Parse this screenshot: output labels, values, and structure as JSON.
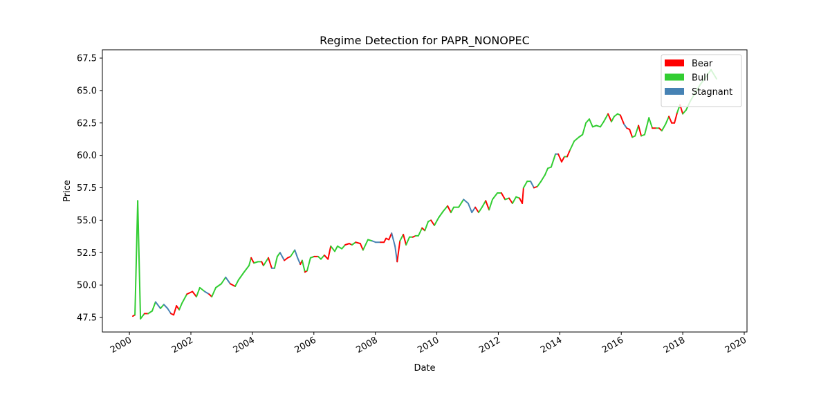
{
  "chart_data": {
    "type": "regime_line",
    "title": "Regime Detection for PAPR_NONOPEC",
    "x_label": "Date",
    "y_label": "Price",
    "series": [
      {
        "name": "Bear",
        "color": "#ff0000"
      },
      {
        "name": "Bull",
        "color": "#32cd32"
      },
      {
        "name": "Stagnant",
        "color": "#4682b4"
      }
    ],
    "legend": "upper right",
    "xlim": [
      1999.12,
      2020.09
    ],
    "xticks": [
      2000,
      2002,
      2004,
      2006,
      2008,
      2010,
      2012,
      2014,
      2016,
      2018,
      2020
    ],
    "ylim": [
      46.38,
      68.14
    ],
    "yticks": [
      47.5,
      {
        "value": 50,
        "label": "50.0"
      },
      52.5,
      {
        "value": 55,
        "label": "55.0"
      },
      57.5,
      {
        "value": 60,
        "label": "60.0"
      },
      62.5,
      {
        "value": 65,
        "label": "65.0"
      },
      67.5
    ],
    "x": [
      2000.11,
      2000.18,
      2000.27,
      2000.36,
      2000.49,
      2000.61,
      2000.74,
      2000.85,
      2001.01,
      2001.12,
      2001.24,
      2001.35,
      2001.44,
      2001.53,
      2001.62,
      2001.71,
      2001.87,
      2002.05,
      2002.18,
      2002.29,
      2002.45,
      2002.59,
      2002.68,
      2002.81,
      2002.99,
      2003.13,
      2003.28,
      2003.44,
      2003.55,
      2003.73,
      2003.89,
      2003.96,
      2004.05,
      2004.18,
      2004.3,
      2004.36,
      2004.52,
      2004.63,
      2004.72,
      2004.81,
      2004.9,
      2005.04,
      2005.15,
      2005.24,
      2005.38,
      2005.47,
      2005.56,
      2005.62,
      2005.71,
      2005.78,
      2005.89,
      2006.01,
      2006.14,
      2006.23,
      2006.34,
      2006.46,
      2006.55,
      2006.68,
      2006.77,
      2006.91,
      2007.02,
      2007.15,
      2007.24,
      2007.36,
      2007.51,
      2007.6,
      2007.76,
      2007.9,
      2008.01,
      2008.17,
      2008.28,
      2008.35,
      2008.44,
      2008.53,
      2008.64,
      2008.71,
      2008.8,
      2008.91,
      2009.0,
      2009.11,
      2009.22,
      2009.31,
      2009.4,
      2009.52,
      2009.61,
      2009.72,
      2009.81,
      2009.92,
      2010.06,
      2010.21,
      2010.35,
      2010.46,
      2010.55,
      2010.71,
      2010.87,
      2011.02,
      2011.14,
      2011.25,
      2011.36,
      2011.47,
      2011.59,
      2011.7,
      2011.81,
      2011.97,
      2012.1,
      2012.22,
      2012.35,
      2012.46,
      2012.58,
      2012.69,
      2012.78,
      2012.82,
      2012.94,
      2013.05,
      2013.16,
      2013.27,
      2013.39,
      2013.52,
      2013.61,
      2013.72,
      2013.86,
      2013.95,
      2014.06,
      2014.15,
      2014.24,
      2014.33,
      2014.47,
      2014.62,
      2014.74,
      2014.85,
      2014.96,
      2015.07,
      2015.19,
      2015.32,
      2015.43,
      2015.57,
      2015.68,
      2015.77,
      2015.88,
      2015.97,
      2016.09,
      2016.18,
      2016.27,
      2016.36,
      2016.45,
      2016.56,
      2016.65,
      2016.76,
      2016.9,
      2017.01,
      2017.14,
      2017.23,
      2017.32,
      2017.44,
      2017.55,
      2017.64,
      2017.73,
      2017.82,
      2017.91,
      2018.0,
      2018.11,
      2018.25,
      2018.4,
      2018.58,
      2018.74,
      2018.92,
      2019.1
    ],
    "values": [
      47.6,
      47.7,
      56.5,
      47.4,
      47.8,
      47.8,
      48.0,
      48.7,
      48.2,
      48.5,
      48.2,
      47.8,
      47.7,
      48.4,
      48.1,
      48.6,
      49.3,
      49.5,
      49.1,
      49.8,
      49.5,
      49.3,
      49.1,
      49.8,
      50.1,
      50.6,
      50.1,
      49.9,
      50.4,
      51.0,
      51.5,
      52.1,
      51.7,
      51.8,
      51.8,
      51.5,
      52.1,
      51.3,
      51.3,
      52.2,
      52.5,
      51.9,
      52.1,
      52.2,
      52.7,
      52.1,
      51.6,
      51.9,
      51.0,
      51.1,
      52.1,
      52.2,
      52.2,
      52.0,
      52.3,
      52.0,
      53.0,
      52.6,
      53.0,
      52.8,
      53.1,
      53.2,
      53.1,
      53.3,
      53.2,
      52.7,
      53.5,
      53.4,
      53.3,
      53.3,
      53.3,
      53.6,
      53.5,
      54.0,
      53.0,
      51.8,
      53.4,
      53.9,
      53.1,
      53.7,
      53.7,
      53.8,
      53.8,
      54.4,
      54.2,
      54.9,
      55.0,
      54.6,
      55.2,
      55.7,
      56.1,
      55.6,
      56.0,
      56.0,
      56.6,
      56.3,
      55.6,
      56.0,
      55.6,
      56.0,
      56.5,
      55.8,
      56.6,
      57.1,
      57.1,
      56.6,
      56.7,
      56.3,
      56.8,
      56.7,
      56.3,
      57.5,
      58.0,
      58.0,
      57.5,
      57.6,
      58.0,
      58.5,
      59.0,
      59.1,
      60.1,
      60.1,
      59.5,
      59.9,
      59.9,
      60.4,
      61.1,
      61.4,
      61.6,
      62.5,
      62.8,
      62.2,
      62.3,
      62.2,
      62.6,
      63.2,
      62.6,
      63.0,
      63.2,
      63.1,
      62.4,
      62.1,
      62.0,
      61.4,
      61.5,
      62.3,
      61.5,
      61.6,
      62.9,
      62.1,
      62.1,
      62.1,
      61.9,
      62.4,
      63.0,
      62.5,
      62.5,
      63.3,
      63.9,
      63.2,
      63.5,
      64.2,
      64.8,
      65.5,
      66.0,
      66.6,
      65.9
    ],
    "regimes": [
      "Bear",
      "Bear",
      "Bull",
      "Bull",
      "Bull",
      "Bear",
      "Bull",
      "Bull",
      "Stagnant",
      "Bull",
      "Stagnant",
      "Stagnant",
      "Bear",
      "Bear",
      "Bear",
      "Bull",
      "Bull",
      "Bear",
      "Bear",
      "Bull",
      "Bull",
      "Stagnant",
      "Bear",
      "Bull",
      "Bull",
      "Bull",
      "Stagnant",
      "Bear",
      "Bull",
      "Bull",
      "Bull",
      "Bull",
      "Bear",
      "Bull",
      "Bull",
      "Bear",
      "Bull",
      "Bear",
      "Stagnant",
      "Bull",
      "Bull",
      "Stagnant",
      "Bear",
      "Bear",
      "Bull",
      "Stagnant",
      "Stagnant",
      "Bear",
      "Bull",
      "Bear",
      "Bull",
      "Bull",
      "Bear",
      "Bull",
      "Bull",
      "Bear",
      "Bear",
      "Bull",
      "Bull",
      "Bull",
      "Bull",
      "Bear",
      "Bear",
      "Bull",
      "Bear",
      "Bear",
      "Bull",
      "Bull",
      "Stagnant",
      "Stagnant",
      "Bear",
      "Bear",
      "Bear",
      "Bear",
      "Stagnant",
      "Stagnant",
      "Bear",
      "Bull",
      "Bear",
      "Bull",
      "Bull",
      "Bear",
      "Bull",
      "Bull",
      "Bear",
      "Bull",
      "Bull",
      "Bear",
      "Bull",
      "Bull",
      "Bull",
      "Bear",
      "Bull",
      "Bull",
      "Bull",
      "Stagnant",
      "Stagnant",
      "Stagnant",
      "Bear",
      "Bull",
      "Bull",
      "Bear",
      "Bull",
      "Bull",
      "Bull",
      "Bear",
      "Bull",
      "Bear",
      "Bull",
      "Bull",
      "Bear",
      "Bear",
      "Bull",
      "Bull",
      "Stagnant",
      "Bear",
      "Bull",
      "Bull",
      "Bull",
      "Bull",
      "Bull",
      "Stagnant",
      "Bear",
      "Bear",
      "Bull",
      "Bear",
      "Bull",
      "Bull",
      "Bull",
      "Bull",
      "Bull",
      "Bull",
      "Bull",
      "Bull",
      "Bull",
      "Bull",
      "Bear",
      "Bull",
      "Bull",
      "Bull",
      "Bear",
      "Stagnant",
      "Bear",
      "Bear",
      "Bull",
      "Bull",
      "Bear",
      "Bull",
      "Bull",
      "Bull",
      "Bear",
      "Bull",
      "Bear",
      "Bull",
      "Bull",
      "Bear",
      "Bear",
      "Bear",
      "Bull",
      "Bear",
      "Bull",
      "Bull",
      "Bull",
      "Bull",
      "Bull",
      "Bull",
      "Bull"
    ]
  }
}
